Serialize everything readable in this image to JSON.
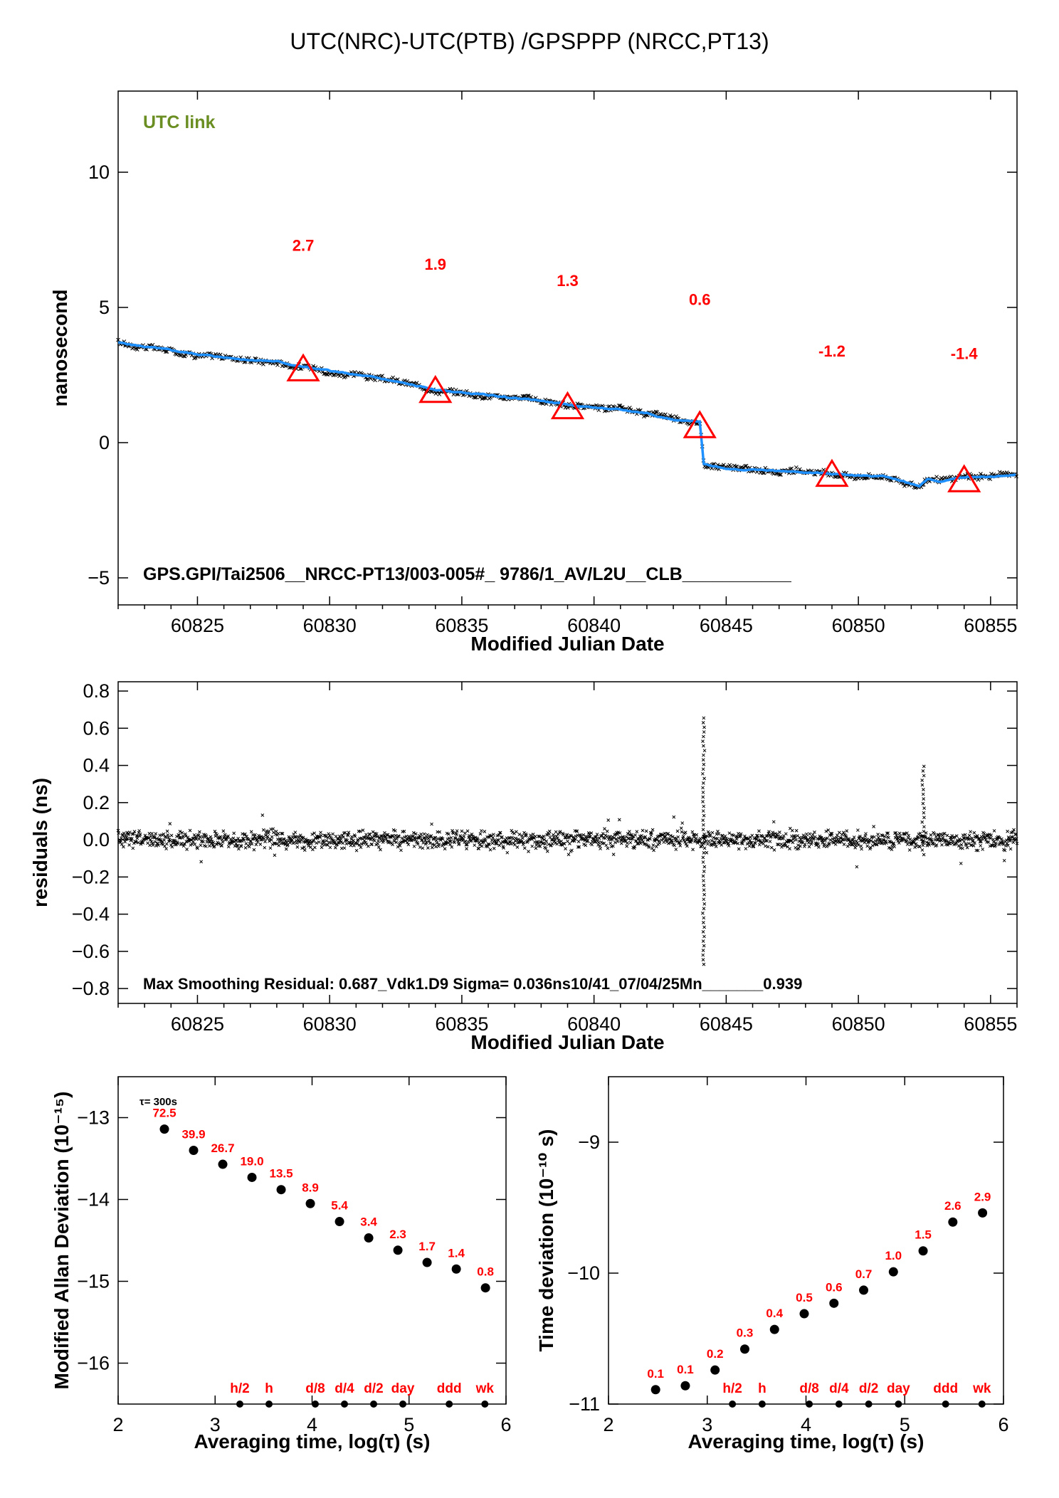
{
  "title": "UTC(NRC)-UTC(PTB)  /GPSPPP  (NRCC,PT13)",
  "colors": {
    "link_label": "#6b8e23",
    "annotation": "#ff0000",
    "fit_line": "#1e90ff",
    "points": "#000000"
  },
  "chart_data": [
    {
      "id": "utc_link",
      "type": "line",
      "tag": "UTC link",
      "xlabel": "Modified Julian Date",
      "ylabel": "nanosecond",
      "xlim": [
        60822,
        60856
      ],
      "ylim": [
        -6,
        13
      ],
      "xticks": [
        60825,
        60830,
        60835,
        60840,
        60845,
        60850,
        60855
      ],
      "yticks": [
        -5,
        0,
        5,
        10
      ],
      "ytick_labels": [
        "−5",
        "0",
        "5",
        "10"
      ],
      "footer": "GPS.GPI/Tai2506__NRCC-PT13/003-005#_  9786/1_AV/L2U__CLB___________",
      "series": [
        {
          "style": "black x markers with blue smoothed line",
          "x": [
            60822,
            60824,
            60826,
            60828,
            60829,
            60830,
            60832,
            60834,
            60836,
            60838,
            60839,
            60840,
            60842,
            60843,
            60844,
            60844.15,
            60845,
            60847,
            60849,
            60851,
            60852.3,
            60852.6,
            60853,
            60854,
            60855,
            60856
          ],
          "y": [
            3.7,
            3.4,
            3.15,
            3.0,
            2.8,
            2.65,
            2.35,
            1.95,
            1.75,
            1.55,
            1.4,
            1.3,
            1.1,
            0.85,
            0.75,
            -0.8,
            -0.95,
            -1.05,
            -1.15,
            -1.25,
            -1.6,
            -1.35,
            -1.45,
            -1.3,
            -1.25,
            -1.2
          ]
        }
      ],
      "markers": {
        "shape": "triangle",
        "x": [
          60829,
          60834,
          60839,
          60844,
          60849,
          60854
        ],
        "y": [
          2.7,
          1.9,
          1.3,
          0.6,
          -1.2,
          -1.4
        ]
      },
      "annotations": [
        {
          "text": "2.7",
          "x": 60829,
          "y": 7.3
        },
        {
          "text": "1.9",
          "x": 60834,
          "y": 6.6
        },
        {
          "text": "1.3",
          "x": 60839,
          "y": 6.0
        },
        {
          "text": "0.6",
          "x": 60844,
          "y": 5.3
        },
        {
          "text": "-1.2",
          "x": 60849,
          "y": 3.4
        },
        {
          "text": "-1.4",
          "x": 60854,
          "y": 3.3
        }
      ]
    },
    {
      "id": "residuals",
      "type": "scatter",
      "xlabel": "Modified Julian Date",
      "ylabel": "residuals (ns)",
      "xlim": [
        60822,
        60856
      ],
      "ylim": [
        -0.88,
        0.85
      ],
      "xticks": [
        60825,
        60830,
        60835,
        60840,
        60845,
        60850,
        60855
      ],
      "yticks": [
        -0.8,
        -0.6,
        -0.4,
        -0.2,
        0.0,
        0.2,
        0.4,
        0.6,
        0.8
      ],
      "ytick_labels": [
        "−0.8",
        "−0.6",
        "−0.4",
        "−0.2",
        "0.0",
        "0.2",
        "0.4",
        "0.6",
        "0.8"
      ],
      "noise_sigma": 0.036,
      "outliers": [
        {
          "x": 60844.15,
          "ymin": -0.67,
          "ymax": 0.67
        },
        {
          "x": 60852.45,
          "ymin": -0.08,
          "ymax": 0.4
        }
      ],
      "footer": "Max Smoothing Residual: 0.687_Vdk1.D9  Sigma= 0.036ns10/41_07/04/25Mn_______0.939"
    },
    {
      "id": "mdev",
      "type": "scatter",
      "xlabel": "Averaging time, log(τ) (s)",
      "ylabel": "Modified Allan Deviation (10⁻¹⁵)",
      "xlim": [
        2,
        6
      ],
      "ylim": [
        -16.5,
        -12.5
      ],
      "xticks": [
        2,
        3,
        4,
        5,
        6
      ],
      "yticks": [
        -13,
        -14,
        -15,
        -16
      ],
      "ytick_labels": [
        "−13",
        "−14",
        "−15",
        "−16"
      ],
      "tau_note": "τ= 300s",
      "x": [
        2.477,
        2.778,
        3.079,
        3.38,
        3.681,
        3.982,
        4.283,
        4.584,
        4.885,
        5.186,
        5.487,
        5.788
      ],
      "y": [
        -13.14,
        -13.4,
        -13.57,
        -13.73,
        -13.88,
        -14.05,
        -14.27,
        -14.47,
        -14.62,
        -14.77,
        -14.85,
        -15.08
      ],
      "labels": [
        "72.5",
        "39.9",
        "26.7",
        "19.0",
        "13.5",
        "8.9",
        "5.4",
        "3.4",
        "2.3",
        "1.7",
        "1.4",
        "0.8"
      ],
      "time_marks": [
        {
          "label": "h/2",
          "x": 3.255
        },
        {
          "label": "h",
          "x": 3.556
        },
        {
          "label": "d/8",
          "x": 4.033
        },
        {
          "label": "d/4",
          "x": 4.334
        },
        {
          "label": "d/2",
          "x": 4.635
        },
        {
          "label": "day",
          "x": 4.936
        },
        {
          "label": "ddd",
          "x": 5.414
        },
        {
          "label": "wk",
          "x": 5.782
        }
      ]
    },
    {
      "id": "tdev",
      "type": "scatter",
      "xlabel": "Averaging time, log(τ) (s)",
      "ylabel": "Time deviation (10⁻¹⁰ s)",
      "xlim": [
        2,
        6
      ],
      "ylim": [
        -11,
        -8.5
      ],
      "xticks": [
        2,
        3,
        4,
        5,
        6
      ],
      "yticks": [
        -9,
        -10,
        -11
      ],
      "ytick_labels": [
        "−9",
        "−10",
        "−11"
      ],
      "x": [
        2.477,
        2.778,
        3.079,
        3.38,
        3.681,
        3.982,
        4.283,
        4.584,
        4.885,
        5.186,
        5.487,
        5.788
      ],
      "y": [
        -10.89,
        -10.86,
        -10.74,
        -10.58,
        -10.43,
        -10.31,
        -10.23,
        -10.13,
        -9.99,
        -9.83,
        -9.61,
        -9.54
      ],
      "labels": [
        "0.1",
        "0.1",
        "0.2",
        "0.3",
        "0.4",
        "0.5",
        "0.6",
        "0.7",
        "1.0",
        "1.5",
        "2.6",
        "2.9"
      ],
      "time_marks": [
        {
          "label": "h/2",
          "x": 3.255
        },
        {
          "label": "h",
          "x": 3.556
        },
        {
          "label": "d/8",
          "x": 4.033
        },
        {
          "label": "d/4",
          "x": 4.334
        },
        {
          "label": "d/2",
          "x": 4.635
        },
        {
          "label": "day",
          "x": 4.936
        },
        {
          "label": "ddd",
          "x": 5.414
        },
        {
          "label": "wk",
          "x": 5.782
        }
      ]
    }
  ]
}
